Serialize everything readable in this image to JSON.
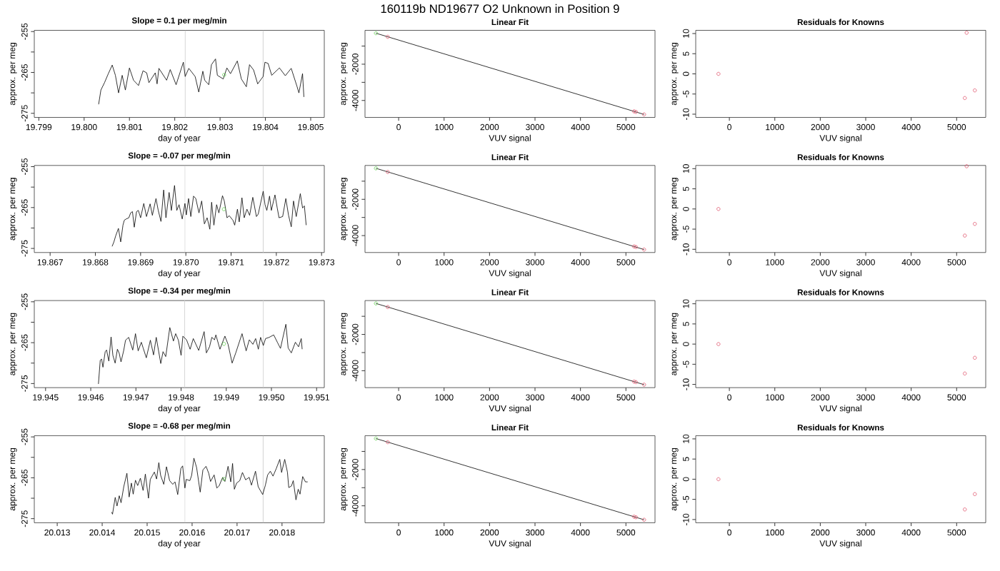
{
  "chart_data": [
    {
      "type": "line",
      "title": "Slope =  0.1  per meg/min",
      "xlabel": "day of year",
      "ylabel": "approx. per meg",
      "annotations": [
        "160119b      ND19677   O2 Unknown in Position  9"
      ],
      "xlim": [
        19.7989,
        19.8053
      ],
      "ylim": [
        -276,
        -254.7
      ],
      "xticks": [
        19.799,
        {
          "value": 19.8,
          "label": "19.800"
        },
        19.801,
        19.802,
        19.803,
        19.804,
        19.805
      ],
      "yticks": [
        -255,
        {
          "value": -260,
          "label": null
        },
        -265,
        {
          "value": -270,
          "label": null
        },
        -275
      ],
      "ref_lines": [
        {
          "axis": "x",
          "value": 19.80223,
          "color": "#d3d3d3"
        },
        {
          "axis": "x",
          "value": 19.80395,
          "color": "#d3d3d3"
        }
      ],
      "series": [
        {
          "color": "#000000",
          "x": [
            19.80032,
            19.80037,
            19.80045,
            19.80053,
            19.80062,
            19.80069,
            19.80076,
            19.80084,
            19.80091,
            19.801,
            19.80109,
            19.8012,
            19.8013,
            19.80138,
            19.80143,
            19.80157,
            19.80161,
            19.80165,
            19.80182,
            19.8019,
            19.80203,
            19.80219,
            19.80223,
            19.80231,
            19.80245,
            19.80253,
            19.80262,
            19.80266,
            19.80275,
            19.80281,
            19.8029,
            19.80294,
            19.80307,
            19.80315,
            19.80323,
            19.80338,
            19.80347,
            19.80358,
            19.80365,
            19.80374,
            19.80383,
            19.80395,
            19.80399,
            19.80406,
            19.80414,
            19.80431,
            19.80444,
            19.80457,
            19.8047,
            19.80474,
            19.80482,
            19.80485
          ],
          "values": [
            -272.8,
            -269.3,
            -267.5,
            -265.4,
            -263.2,
            -265.7,
            -270.0,
            -265.7,
            -269.3,
            -263.9,
            -266.9,
            -268.2,
            -264.6,
            -265.1,
            -267.5,
            -265.1,
            -267.8,
            -264.0,
            -266.9,
            -264.3,
            -268.0,
            -262.5,
            -266.0,
            -264.0,
            -266.0,
            -269.8,
            -264.7,
            -266.9,
            -268.0,
            -263.1,
            -261.7,
            -265.7,
            -266.6,
            -263.9,
            -265.3,
            -262.2,
            -266.6,
            -268.5,
            -263.1,
            -264.4,
            -267.8,
            -266.0,
            -262.5,
            -262.8,
            -265.7,
            -263.9,
            -265.8,
            -264.0,
            -268.5,
            -270.0,
            -265.3,
            -271.0
          ]
        },
        {
          "type": "scatter",
          "color": "#61d04f",
          "marker": "circle",
          "x": [
            19.80309
          ],
          "values": [
            -265.6
          ]
        }
      ]
    },
    {
      "type": "scatter",
      "title": "Linear Fit",
      "xlabel": "VUV signal",
      "ylabel": "approx. per meg",
      "xlim": [
        -740,
        5640
      ],
      "ylim": [
        -4934,
        -132
      ],
      "xticks": [
        0,
        1000,
        2000,
        3000,
        4000,
        5000
      ],
      "yticks": [
        {
          "value": -1000,
          "label": null
        },
        -2000,
        {
          "value": -3000,
          "label": null
        },
        -4000
      ],
      "series": [
        {
          "type": "line",
          "color": "#000000",
          "x": [
            -500,
            5400
          ],
          "values": [
            -290,
            -4770
          ]
        },
        {
          "color": "#df536b",
          "marker": "circle",
          "x": [
            -240,
            5180,
            5220,
            5400
          ],
          "values": [
            -490,
            -4600,
            -4630,
            -4770
          ]
        },
        {
          "color": "#61d04f",
          "marker": "circle",
          "x": [
            -500
          ],
          "values": [
            -290
          ]
        }
      ]
    },
    {
      "type": "scatter",
      "title": "Residuals for Knowns",
      "xlabel": "VUV signal",
      "ylabel": "approx. per meg",
      "xlim": [
        -740,
        5640
      ],
      "ylim": [
        -10.8,
        10.8
      ],
      "xticks": [
        0,
        1000,
        2000,
        3000,
        4000,
        5000
      ],
      "yticks": [
        -10,
        -5,
        0,
        5,
        10
      ],
      "series": [
        {
          "color": "#df536b",
          "marker": "circle",
          "x": [
            -240,
            5220,
            5180,
            5400
          ],
          "values": [
            0,
            10.2,
            -6.0,
            -4.1
          ]
        }
      ]
    },
    {
      "type": "line",
      "title": "Slope =  -0.07  per meg/min",
      "xlabel": "day of year",
      "ylabel": "approx. per meg",
      "xlim": [
        19.86665,
        19.87306
      ],
      "ylim": [
        -276,
        -254.7
      ],
      "xticks": [
        19.867,
        19.868,
        19.869,
        {
          "value": 19.87,
          "label": "19.870"
        },
        19.871,
        19.872,
        19.873
      ],
      "yticks": [
        -255,
        {
          "value": -260,
          "label": null
        },
        -265,
        {
          "value": -270,
          "label": null
        },
        -275
      ],
      "ref_lines": [
        {
          "axis": "x",
          "value": 19.86998,
          "color": "#d3d3d3"
        },
        {
          "axis": "x",
          "value": 19.87171,
          "color": "#d3d3d3"
        }
      ],
      "series": [
        {
          "color": "#000000",
          "x": [
            19.86837,
            19.86841,
            19.86845,
            19.86851,
            19.86856,
            19.86861,
            19.86864,
            19.86868,
            19.86874,
            19.86878,
            19.86882,
            19.86886,
            19.86891,
            19.86895,
            19.869,
            19.86907,
            19.86913,
            19.86921,
            19.86926,
            19.86934,
            19.86939,
            19.86945,
            19.86951,
            19.86956,
            19.86963,
            19.86968,
            19.86975,
            19.8698,
            19.86985,
            19.86992,
            19.86998,
            19.87001,
            19.87006,
            19.87011,
            19.87017,
            19.87022,
            19.87029,
            19.87035,
            19.87041,
            19.87047,
            19.87053,
            19.87057,
            19.87062,
            19.87068,
            19.87073,
            19.87081,
            19.87085,
            19.87091,
            19.87096,
            19.87104,
            19.87108,
            19.87114,
            19.87118,
            19.87124,
            19.87129,
            19.87135,
            19.87141,
            19.87148,
            19.87156,
            19.8716,
            19.87171,
            19.87175,
            19.87179,
            19.87185,
            19.87189,
            19.87197,
            19.87202,
            19.87206,
            19.87214,
            19.87221,
            19.87227,
            19.87233,
            19.87238,
            19.87244,
            19.87253,
            19.87258,
            19.87262,
            19.87266
          ],
          "values": [
            -274.5,
            -273.4,
            -271.9,
            -270.1,
            -273.4,
            -269.3,
            -268.1,
            -267.8,
            -267.5,
            -266.3,
            -266.0,
            -269.8,
            -266.0,
            -265.7,
            -267.5,
            -264.0,
            -267.2,
            -264.1,
            -266.9,
            -262.8,
            -265.7,
            -268.4,
            -260.7,
            -267.5,
            -261.3,
            -265.7,
            -259.6,
            -265.7,
            -264.3,
            -267.8,
            -264.0,
            -266.8,
            -262.8,
            -267.2,
            -262.2,
            -262.8,
            -266.3,
            -263.4,
            -269.0,
            -267.5,
            -270.3,
            -263.7,
            -269.3,
            -264.3,
            -266.3,
            -262.1,
            -263.4,
            -267.5,
            -267.0,
            -268.1,
            -269.3,
            -265.4,
            -268.5,
            -262.6,
            -267.5,
            -265.4,
            -266.9,
            -262.5,
            -267.2,
            -266.6,
            -261.0,
            -264.3,
            -265.7,
            -262.2,
            -265.7,
            -261.9,
            -265.1,
            -267.5,
            -267.2,
            -262.8,
            -266.9,
            -269.7,
            -263.4,
            -267.2,
            -261.6,
            -265.1,
            -264.6,
            -269.3
          ]
        },
        {
          "type": "scatter",
          "color": "#61d04f",
          "marker": "circle",
          "x": [
            19.87084
          ],
          "values": [
            -265.4
          ]
        }
      ]
    },
    {
      "type": "scatter",
      "title": "Linear Fit",
      "xlabel": "VUV signal",
      "ylabel": "approx. per meg",
      "xlim": [
        -740,
        5640
      ],
      "ylim": [
        -4934,
        -132
      ],
      "xticks": [
        0,
        1000,
        2000,
        3000,
        4000,
        5000
      ],
      "yticks": [
        {
          "value": -1000,
          "label": null
        },
        -2000,
        {
          "value": -3000,
          "label": null
        },
        -4000
      ],
      "series": [
        {
          "type": "line",
          "color": "#000000",
          "x": [
            -500,
            5400
          ],
          "values": [
            -290,
            -4770
          ]
        },
        {
          "color": "#df536b",
          "marker": "circle",
          "x": [
            -240,
            5180,
            5220,
            5400
          ],
          "values": [
            -490,
            -4600,
            -4630,
            -4770
          ]
        },
        {
          "color": "#61d04f",
          "marker": "circle",
          "x": [
            -500
          ],
          "values": [
            -290
          ]
        }
      ]
    },
    {
      "type": "scatter",
      "title": "Residuals for Knowns",
      "xlabel": "VUV signal",
      "ylabel": "approx. per meg",
      "xlim": [
        -740,
        5640
      ],
      "ylim": [
        -10.8,
        10.8
      ],
      "xticks": [
        0,
        1000,
        2000,
        3000,
        4000,
        5000
      ],
      "yticks": [
        -10,
        -5,
        0,
        5,
        10
      ],
      "series": [
        {
          "color": "#df536b",
          "marker": "circle",
          "x": [
            -240,
            5220,
            5180,
            5400
          ],
          "values": [
            0,
            10.6,
            -6.6,
            -3.7
          ]
        }
      ]
    },
    {
      "type": "line",
      "title": "Slope =  -0.34  per meg/min",
      "xlabel": "day of year",
      "ylabel": "approx. per meg",
      "xlim": [
        19.94475,
        19.95117
      ],
      "ylim": [
        -276,
        -254.7
      ],
      "xticks": [
        19.945,
        19.946,
        19.947,
        19.948,
        19.949,
        {
          "value": 19.95,
          "label": "19.950"
        },
        19.951
      ],
      "yticks": [
        -255,
        {
          "value": -260,
          "label": null
        },
        -265,
        {
          "value": -270,
          "label": null
        },
        -275
      ],
      "ref_lines": [
        {
          "axis": "x",
          "value": 19.94808,
          "color": "#d3d3d3"
        },
        {
          "axis": "x",
          "value": 19.94982,
          "color": "#d3d3d3"
        }
      ],
      "series": [
        {
          "color": "#000000",
          "x": [
            19.94617,
            19.94621,
            19.94624,
            19.94627,
            19.94632,
            19.94635,
            19.9464,
            19.94645,
            19.94649,
            19.94654,
            19.94659,
            19.94663,
            19.94667,
            19.94673,
            19.94677,
            19.94684,
            19.94693,
            19.94699,
            19.94705,
            19.94712,
            19.94716,
            19.94723,
            19.94732,
            19.94739,
            19.94745,
            19.94755,
            19.9476,
            19.94766,
            19.94775,
            19.94783,
            19.94788,
            19.94794,
            19.948,
            19.94804,
            19.94812,
            19.9482,
            19.94827,
            19.94839,
            19.94851,
            19.94856,
            19.94863,
            19.94868,
            19.94874,
            19.94877,
            19.94886,
            19.94897,
            19.94904,
            19.94913,
            19.94921,
            19.94935,
            19.94944,
            19.94951,
            19.94959,
            19.94965,
            19.94971,
            19.94976,
            19.94982,
            19.94987,
            19.94995,
            19.95005,
            19.95014,
            19.9502,
            19.95032,
            19.95037,
            19.95044,
            19.95053,
            19.9506,
            19.95066,
            19.95068
          ],
          "values": [
            -275.1,
            -269.3,
            -269.0,
            -271.0,
            -267.2,
            -266.8,
            -269.5,
            -263.6,
            -268.1,
            -270.0,
            -266.6,
            -267.6,
            -269.7,
            -266.9,
            -264.4,
            -263.7,
            -266.8,
            -262.8,
            -267.0,
            -264.9,
            -266.3,
            -268.7,
            -264.4,
            -268.0,
            -263.7,
            -270.1,
            -267.2,
            -268.4,
            -261.3,
            -264.6,
            -262.8,
            -264.4,
            -268.1,
            -263.4,
            -264.3,
            -266.6,
            -264.0,
            -266.9,
            -262.3,
            -267.5,
            -266.0,
            -263.7,
            -264.3,
            -263.1,
            -266.6,
            -263.4,
            -265.4,
            -270.0,
            -267.5,
            -262.8,
            -267.0,
            -264.3,
            -265.4,
            -264.0,
            -266.6,
            -263.7,
            -265.7,
            -264.0,
            -263.7,
            -263.1,
            -265.1,
            -266.4,
            -260.5,
            -266.3,
            -267.5,
            -264.9,
            -266.0,
            -264.0,
            -266.6
          ]
        },
        {
          "type": "scatter",
          "color": "#61d04f",
          "marker": "circle",
          "x": [
            19.94895
          ],
          "values": [
            -265.3
          ]
        }
      ]
    },
    {
      "type": "scatter",
      "title": "Linear Fit",
      "xlabel": "VUV signal",
      "ylabel": "approx. per meg",
      "xlim": [
        -740,
        5640
      ],
      "ylim": [
        -4934,
        -132
      ],
      "xticks": [
        0,
        1000,
        2000,
        3000,
        4000,
        5000
      ],
      "yticks": [
        {
          "value": -1000,
          "label": null
        },
        -2000,
        {
          "value": -3000,
          "label": null
        },
        -4000
      ],
      "series": [
        {
          "type": "line",
          "color": "#000000",
          "x": [
            -500,
            5400
          ],
          "values": [
            -290,
            -4770
          ]
        },
        {
          "color": "#df536b",
          "marker": "circle",
          "x": [
            -240,
            5180,
            5220,
            5400
          ],
          "values": [
            -490,
            -4600,
            -4630,
            -4770
          ]
        },
        {
          "color": "#61d04f",
          "marker": "circle",
          "x": [
            -500
          ],
          "values": [
            -290
          ]
        }
      ]
    },
    {
      "type": "scatter",
      "title": "Residuals for Knowns",
      "xlabel": "VUV signal",
      "ylabel": "approx. per meg",
      "xlim": [
        -740,
        5640
      ],
      "ylim": [
        -10.8,
        10.8
      ],
      "xticks": [
        0,
        1000,
        2000,
        3000,
        4000,
        5000
      ],
      "yticks": [
        -10,
        -5,
        0,
        5,
        10
      ],
      "series": [
        {
          "color": "#df536b",
          "marker": "circle",
          "x": [
            -240,
            5180,
            5400
          ],
          "values": [
            0,
            -7.3,
            -3.4
          ]
        }
      ]
    },
    {
      "type": "line",
      "title": "Slope =  -0.68  per meg/min",
      "xlabel": "day of year",
      "ylabel": "approx. per meg",
      "xlim": [
        20.01249,
        20.01894
      ],
      "ylim": [
        -276,
        -254.7
      ],
      "xticks": [
        20.013,
        20.014,
        20.015,
        20.016,
        20.017,
        20.018
      ],
      "yticks": [
        -255,
        {
          "value": -260,
          "label": null
        },
        -265,
        {
          "value": -270,
          "label": null
        },
        -275
      ],
      "ref_lines": [
        {
          "axis": "x",
          "value": 20.01584,
          "color": "#d3d3d3"
        },
        {
          "axis": "x",
          "value": 20.01758,
          "color": "#d3d3d3"
        }
      ],
      "series": [
        {
          "color": "#000000",
          "x": [
            20.01421,
            20.01423,
            20.01429,
            20.01433,
            20.01438,
            20.01442,
            20.01448,
            20.01455,
            20.0146,
            20.01465,
            20.01469,
            20.01474,
            20.01479,
            20.01485,
            20.01491,
            20.01496,
            20.01503,
            20.01507,
            20.01516,
            20.01521,
            20.01526,
            20.0153,
            20.01537,
            20.01543,
            20.0155,
            20.01557,
            20.01562,
            20.01568,
            20.01575,
            20.01579,
            20.01584,
            20.01587,
            20.01595,
            20.01599,
            20.01604,
            20.0161,
            20.01618,
            20.01624,
            20.01631,
            20.01637,
            20.01641,
            20.01649,
            20.01655,
            20.0166,
            20.01668,
            20.01673,
            20.0168,
            20.01686,
            20.0169,
            20.01694,
            20.01699,
            20.01706,
            20.01712,
            20.01719,
            20.01727,
            20.01732,
            20.01741,
            20.01747,
            20.01757,
            20.01763,
            20.01768,
            20.01774,
            20.0178,
            20.01787,
            20.01795,
            20.01799,
            20.01806,
            20.01812,
            20.01815,
            20.01821,
            20.01825,
            20.01831,
            20.01836,
            20.0184,
            20.01846,
            20.01852,
            20.01857
          ],
          "values": [
            -273.4,
            -273.9,
            -269.8,
            -271.9,
            -269.4,
            -271.1,
            -267.2,
            -263.9,
            -269.7,
            -266.3,
            -269.0,
            -265.6,
            -266.9,
            -265.1,
            -268.1,
            -264.1,
            -270.0,
            -265.4,
            -263.6,
            -265.3,
            -261.3,
            -264.4,
            -266.6,
            -262.3,
            -265.7,
            -266.6,
            -266.0,
            -269.1,
            -262.7,
            -262.1,
            -267.5,
            -265.4,
            -265.7,
            -264.4,
            -260.2,
            -262.5,
            -268.5,
            -263.1,
            -262.2,
            -263.9,
            -265.9,
            -264.3,
            -267.5,
            -267.0,
            -264.9,
            -265.9,
            -262.2,
            -266.0,
            -261.5,
            -267.8,
            -266.3,
            -265.7,
            -263.7,
            -265.5,
            -264.9,
            -266.8,
            -263.4,
            -267.2,
            -269.1,
            -266.8,
            -264.3,
            -263.4,
            -264.6,
            -262.8,
            -260.5,
            -263.7,
            -260.5,
            -263.6,
            -267.4,
            -267.0,
            -265.7,
            -270.4,
            -267.8,
            -269.0,
            -264.7,
            -266.0,
            -266.0
          ]
        },
        {
          "type": "scatter",
          "color": "#61d04f",
          "marker": "circle",
          "x": [
            20.01671
          ],
          "values": [
            -265.3
          ]
        }
      ]
    },
    {
      "type": "scatter",
      "title": "Linear Fit",
      "xlabel": "VUV signal",
      "ylabel": "approx. per meg",
      "xlim": [
        -740,
        5640
      ],
      "ylim": [
        -4934,
        -132
      ],
      "xticks": [
        0,
        1000,
        2000,
        3000,
        4000,
        5000
      ],
      "yticks": [
        {
          "value": -1000,
          "label": null
        },
        -2000,
        {
          "value": -3000,
          "label": null
        },
        -4000
      ],
      "series": [
        {
          "type": "line",
          "color": "#000000",
          "x": [
            -500,
            5400
          ],
          "values": [
            -290,
            -4770
          ]
        },
        {
          "color": "#df536b",
          "marker": "circle",
          "x": [
            -240,
            5180,
            5220,
            5400
          ],
          "values": [
            -490,
            -4600,
            -4630,
            -4770
          ]
        },
        {
          "color": "#61d04f",
          "marker": "circle",
          "x": [
            -500
          ],
          "values": [
            -290
          ]
        }
      ]
    },
    {
      "type": "scatter",
      "title": "Residuals for Knowns",
      "xlabel": "VUV signal",
      "ylabel": "approx. per meg",
      "xlim": [
        -740,
        5640
      ],
      "ylim": [
        -10.8,
        10.8
      ],
      "xticks": [
        0,
        1000,
        2000,
        3000,
        4000,
        5000
      ],
      "yticks": [
        -10,
        -5,
        0,
        5,
        10
      ],
      "series": [
        {
          "color": "#df536b",
          "marker": "circle",
          "x": [
            -240,
            5180,
            5400
          ],
          "values": [
            0,
            -7.5,
            -3.7
          ]
        }
      ]
    }
  ]
}
